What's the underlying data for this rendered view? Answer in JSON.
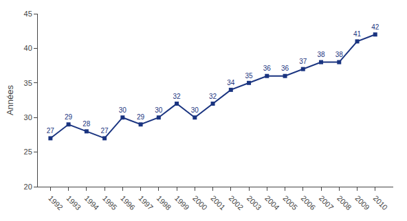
{
  "chart_data": {
    "type": "line",
    "x": [
      1992,
      1993,
      1994,
      1995,
      1996,
      1997,
      1998,
      1999,
      2000,
      2001,
      2002,
      2003,
      2004,
      2005,
      2006,
      2007,
      2008,
      2009,
      2010
    ],
    "values": [
      27,
      29,
      28,
      27,
      30,
      29,
      30,
      32,
      30,
      32,
      34,
      35,
      36,
      36,
      37,
      38,
      38,
      41,
      42
    ],
    "color": "#1A3480",
    "marker": "square",
    "ylabel": "Années",
    "xlim": [
      1991.3,
      2011.0
    ],
    "xticks": [
      1992,
      1993,
      1994,
      1995,
      1996,
      1997,
      1998,
      1999,
      2000,
      2001,
      2002,
      2003,
      2004,
      2005,
      2006,
      2007,
      2008,
      2009,
      2010
    ],
    "ylim": [
      20,
      45
    ],
    "yticks": [
      20,
      25,
      30,
      35,
      40,
      45
    ],
    "data_labels": true,
    "grid": false
  }
}
